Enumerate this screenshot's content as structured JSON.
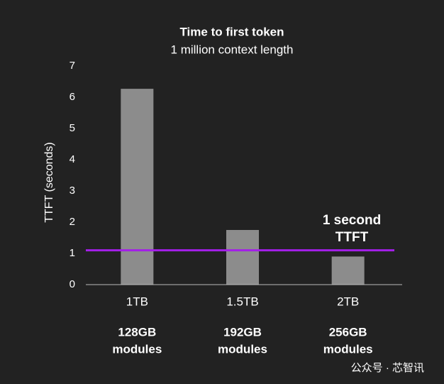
{
  "chart_data": {
    "type": "bar",
    "title": "Time to first token",
    "subtitle": "1 million context length",
    "y_label": "TTFT (seconds)",
    "categories": [
      "1TB",
      "1.5TB",
      "2TB"
    ],
    "category_details": [
      [
        "128GB",
        "modules"
      ],
      [
        "192GB",
        "modules"
      ],
      [
        "256GB",
        "modules"
      ]
    ],
    "values": [
      6.27,
      1.75,
      0.9
    ],
    "color": "#8c8c8c",
    "ylim": [
      0,
      7
    ],
    "yticks": [
      0,
      1,
      2,
      3,
      4,
      5,
      6,
      7
    ],
    "grid": false,
    "reference_line": {
      "value": 1.1,
      "label": [
        "1 second",
        "TTFT"
      ],
      "color": "#a31fe8"
    }
  },
  "watermark": "公众号 · 芯智讯"
}
